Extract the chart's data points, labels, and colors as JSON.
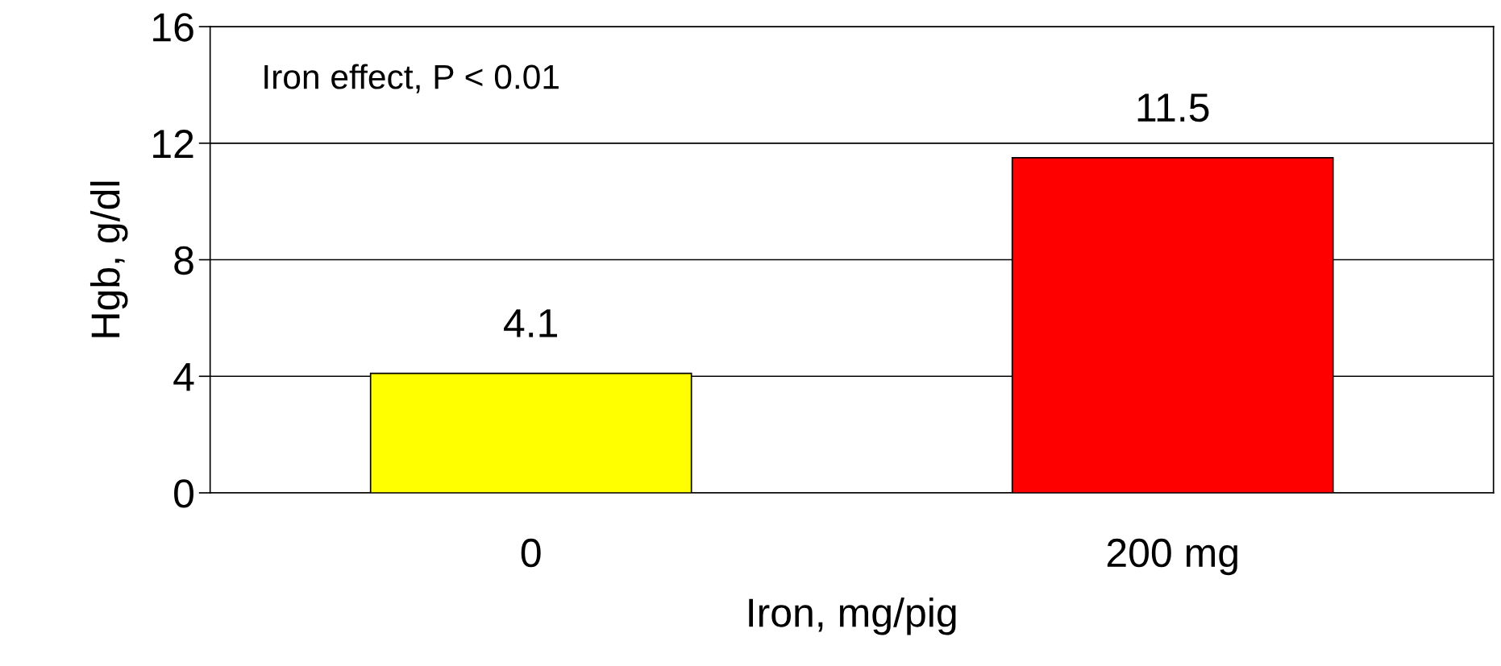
{
  "chart_data": {
    "type": "bar",
    "xlabel": "Iron, mg/pig",
    "ylabel": "Hgb, g/dl",
    "categories": [
      "0",
      "200 mg"
    ],
    "values": [
      4.1,
      11.5
    ],
    "colors": [
      "#ffff00",
      "#ff0000"
    ],
    "ylim": [
      0,
      16
    ],
    "yticks": [
      0,
      4,
      8,
      12,
      16
    ],
    "grid": "y",
    "data_labels": true,
    "annotations": [
      "Iron effect, P < 0.01"
    ]
  }
}
